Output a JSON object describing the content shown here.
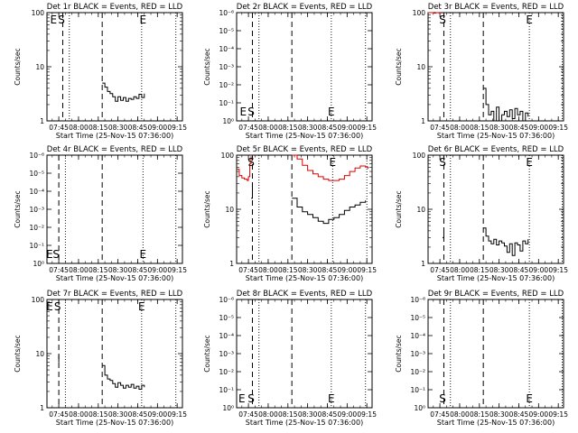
{
  "figure": {
    "x_tick_labels": [
      "07:45",
      "08:00",
      "08:15",
      "08:30",
      "08:45",
      "09:00",
      "09:15"
    ],
    "colors": {
      "events": "#000000",
      "lld": "#dd0000",
      "axes": "#000000",
      "background": "#ffffff"
    }
  },
  "chart_data": [
    {
      "type": "line",
      "title": "Det 1r BLACK = Events, RED = LLD",
      "xlabel": "Start Time (25-Nov-15 07:36:00)",
      "ylabel": "Counts/sec",
      "x_tick_labels": [
        "07:45",
        "08:00",
        "08:15",
        "08:30",
        "08:45",
        "09:00",
        "09:15"
      ],
      "xlim": [
        "07:36",
        "09:19"
      ],
      "y_scale": "log",
      "ylim": [
        1,
        100
      ],
      "y_tick_labels": [
        "1",
        "10",
        "100"
      ],
      "markers": [
        {
          "x": "07:41",
          "text": "E"
        },
        {
          "x": "07:47",
          "text": "S"
        },
        {
          "x": "08:49",
          "text": "E"
        }
      ],
      "dashed_lines_x": [
        "07:48",
        "08:18"
      ],
      "dotted_lines_x": [
        "07:53",
        "08:48",
        "09:14"
      ],
      "series": [
        {
          "color": "#000000",
          "x": [
            "08:18",
            "08:20",
            "08:22",
            "08:24",
            "08:26",
            "08:28",
            "08:30",
            "08:32",
            "08:34",
            "08:36",
            "08:38",
            "08:40",
            "08:42",
            "08:44",
            "08:46",
            "08:48",
            "08:50"
          ],
          "y": [
            5,
            4.2,
            3.5,
            3.2,
            2.8,
            2.3,
            2.8,
            2.4,
            2.7,
            2.3,
            2.6,
            2.5,
            2.8,
            2.6,
            3.1,
            2.7,
            3.2
          ]
        }
      ]
    },
    {
      "type": "line",
      "title": "Det 2r BLACK = Events, RED = LLD",
      "xlabel": "Start Time (25-Nov-15 07:36:00)",
      "ylabel": "Counts/sec",
      "x_tick_labels": [
        "07:45",
        "08:00",
        "08:15",
        "08:30",
        "08:45",
        "09:00",
        "09:15"
      ],
      "xlim": [
        "07:36",
        "09:19"
      ],
      "y_scale": "log",
      "ylim": [
        1,
        1e-06
      ],
      "y_tick_labels": [
        "10⁰",
        "10⁻¹",
        "10⁻²",
        "10⁻³",
        "10⁻⁴",
        "10⁻⁵",
        "10⁻⁶"
      ],
      "markers": [
        {
          "x": "07:41",
          "text": "E"
        },
        {
          "x": "07:47",
          "text": "S"
        },
        {
          "x": "08:48",
          "text": "E"
        }
      ],
      "dashed_lines_x": [
        "07:48",
        "08:18"
      ],
      "dotted_lines_x": [
        "07:53",
        "08:48",
        "09:14"
      ],
      "series": []
    },
    {
      "type": "line",
      "title": "Det 3r BLACK = Events, RED = LLD",
      "xlabel": "Start Time (25-Nov-15 07:36:00)",
      "ylabel": "Counts/sec",
      "x_tick_labels": [
        "07:45",
        "08:00",
        "08:15",
        "08:30",
        "08:45",
        "09:00",
        "09:15"
      ],
      "xlim": [
        "07:36",
        "09:19"
      ],
      "y_scale": "log",
      "ylim": [
        1,
        100
      ],
      "y_tick_labels": [
        "1",
        "10",
        "100"
      ],
      "markers": [
        {
          "x": "07:47",
          "text": "S"
        },
        {
          "x": "08:53",
          "text": "E"
        }
      ],
      "dashed_lines_x": [
        "07:48",
        "08:18"
      ],
      "dotted_lines_x": [
        "07:53",
        "08:53",
        "09:18"
      ],
      "series": [
        {
          "color": "#dd0000",
          "x": [
            "07:36",
            "07:38",
            "07:40",
            "07:42",
            "07:44",
            "07:46"
          ],
          "y": [
            100,
            100,
            98,
            100,
            99,
            100
          ]
        },
        {
          "color": "#000000",
          "x": [
            "08:18",
            "08:20",
            "08:22",
            "08:24",
            "08:26",
            "08:28",
            "08:30",
            "08:32",
            "08:34",
            "08:36",
            "08:38",
            "08:40",
            "08:42",
            "08:44",
            "08:46",
            "08:48",
            "08:50",
            "08:52"
          ],
          "y": [
            4,
            2,
            1.3,
            1.5,
            1,
            1.8,
            1,
            1.3,
            1.5,
            1.2,
            1.6,
            1.1,
            1.7,
            1.3,
            1.5,
            1,
            1.4,
            1.2
          ]
        }
      ]
    },
    {
      "type": "line",
      "title": "Det 4r BLACK = Events, RED = LLD",
      "xlabel": "Start Time (25-Nov-15 07:36:00)",
      "ylabel": "Counts/sec",
      "x_tick_labels": [
        "07:45",
        "08:00",
        "08:15",
        "08:30",
        "08:45",
        "09:00",
        "09:15"
      ],
      "xlim": [
        "07:36",
        "09:19"
      ],
      "y_scale": "log",
      "ylim": [
        1,
        1e-06
      ],
      "y_tick_labels": [
        "10⁰",
        "10⁻¹",
        "10⁻²",
        "10⁻³",
        "10⁻⁴",
        "10⁻⁵",
        "10⁻⁶"
      ],
      "markers": [
        {
          "x": "07:38",
          "text": "E"
        },
        {
          "x": "07:43",
          "text": "S"
        },
        {
          "x": "08:49",
          "text": "E"
        }
      ],
      "dashed_lines_x": [
        "07:45",
        "08:18"
      ],
      "dotted_lines_x": [
        "07:50",
        "08:49",
        "09:14"
      ],
      "series": []
    },
    {
      "type": "line",
      "title": "Det 5r BLACK = Events, RED = LLD",
      "xlabel": "Start Time (25-Nov-15 07:36:00)",
      "ylabel": "Counts/sec",
      "x_tick_labels": [
        "07:45",
        "08:00",
        "08:15",
        "08:30",
        "08:45",
        "09:00",
        "09:15"
      ],
      "xlim": [
        "07:36",
        "09:19"
      ],
      "y_scale": "log",
      "ylim": [
        1,
        100
      ],
      "y_tick_labels": [
        "1",
        "10",
        "100"
      ],
      "markers": [
        {
          "x": "07:47",
          "text": "S"
        },
        {
          "x": "08:49",
          "text": "E"
        }
      ],
      "dashed_lines_x": [
        "07:48",
        "08:18"
      ],
      "dotted_lines_x": [
        "07:53",
        "08:49",
        "09:15"
      ],
      "series": [
        {
          "color": "#dd0000",
          "x": [
            "07:36",
            "07:38",
            "07:40",
            "07:42",
            "07:44",
            "07:45",
            "07:46",
            "07:47"
          ],
          "y": [
            55,
            42,
            38,
            36,
            34,
            40,
            70,
            95
          ]
        },
        {
          "color": "#dd0000",
          "x": [
            "08:18",
            "08:22",
            "08:26",
            "08:30",
            "08:34",
            "08:38",
            "08:42",
            "08:46",
            "08:50",
            "08:54",
            "08:58",
            "09:02",
            "09:06",
            "09:10",
            "09:14",
            "09:16"
          ],
          "y": [
            100,
            85,
            65,
            52,
            45,
            40,
            36,
            34,
            34,
            36,
            42,
            50,
            58,
            63,
            60,
            56
          ]
        },
        {
          "color": "#000000",
          "x": [
            "07:47",
            "07:48"
          ],
          "y": [
            16,
            30
          ]
        },
        {
          "color": "#000000",
          "x": [
            "08:18",
            "08:22",
            "08:26",
            "08:30",
            "08:34",
            "08:38",
            "08:42",
            "08:46",
            "08:50",
            "08:54",
            "08:58",
            "09:02",
            "09:06",
            "09:10",
            "09:14"
          ],
          "y": [
            16,
            11,
            9,
            8,
            7,
            6,
            5.5,
            6.5,
            7,
            8,
            9.5,
            11,
            12,
            13.5,
            14.5
          ]
        }
      ]
    },
    {
      "type": "line",
      "title": "Det 6r BLACK = Events, RED = LLD",
      "xlabel": "Start Time (25-Nov-15 07:36:00)",
      "ylabel": "Counts/sec",
      "x_tick_labels": [
        "07:45",
        "08:00",
        "08:15",
        "08:30",
        "08:45",
        "09:00",
        "09:15"
      ],
      "xlim": [
        "07:36",
        "09:19"
      ],
      "y_scale": "log",
      "ylim": [
        1,
        100
      ],
      "y_tick_labels": [
        "1",
        "10",
        "100"
      ],
      "markers": [
        {
          "x": "07:47",
          "text": "S"
        },
        {
          "x": "08:53",
          "text": "E"
        }
      ],
      "dashed_lines_x": [
        "07:48",
        "08:18"
      ],
      "dotted_lines_x": [
        "07:53",
        "08:53",
        "09:18"
      ],
      "series": [
        {
          "color": "#000000",
          "x": [
            "07:47",
            "07:48"
          ],
          "y": [
            3,
            4.5
          ]
        },
        {
          "color": "#000000",
          "x": [
            "08:18",
            "08:20",
            "08:22",
            "08:24",
            "08:26",
            "08:28",
            "08:30",
            "08:32",
            "08:34",
            "08:36",
            "08:38",
            "08:40",
            "08:42",
            "08:44",
            "08:46",
            "08:48",
            "08:50",
            "08:52"
          ],
          "y": [
            4.5,
            3.2,
            2.6,
            2.3,
            2.8,
            2.2,
            2.6,
            2.4,
            2.1,
            1.6,
            2.3,
            1.4,
            2.4,
            2.2,
            1.7,
            2.6,
            2.3,
            2.8
          ]
        }
      ]
    },
    {
      "type": "line",
      "title": "Det 7r BLACK = Events, RED = LLD",
      "xlabel": "Start Time (25-Nov-15 07:36:00)",
      "ylabel": "Counts/sec",
      "x_tick_labels": [
        "07:45",
        "08:00",
        "08:15",
        "08:30",
        "08:45",
        "09:00",
        "09:15"
      ],
      "xlim": [
        "07:36",
        "09:19"
      ],
      "y_scale": "log",
      "ylim": [
        1,
        100
      ],
      "y_tick_labels": [
        "1",
        "10",
        "100"
      ],
      "markers": [
        {
          "x": "07:38",
          "text": "E"
        },
        {
          "x": "07:44",
          "text": "S"
        },
        {
          "x": "08:48",
          "text": "E"
        }
      ],
      "dashed_lines_x": [
        "07:45",
        "08:18"
      ],
      "dotted_lines_x": [
        "07:50",
        "08:48",
        "09:14"
      ],
      "series": [
        {
          "color": "#000000",
          "x": [
            "07:45"
          ],
          "y": [
            8
          ]
        },
        {
          "color": "#000000",
          "x": [
            "08:18",
            "08:20",
            "08:22",
            "08:24",
            "08:26",
            "08:28",
            "08:30",
            "08:32",
            "08:34",
            "08:36",
            "08:38",
            "08:40",
            "08:42",
            "08:44",
            "08:46",
            "08:48",
            "08:50"
          ],
          "y": [
            6,
            4,
            3.4,
            3.2,
            2.8,
            2.4,
            2.9,
            2.6,
            2.3,
            2.6,
            2.4,
            2.7,
            2.3,
            2.5,
            2.2,
            2.6,
            2.4
          ]
        }
      ]
    },
    {
      "type": "line",
      "title": "Det 8r BLACK = Events, RED = LLD",
      "xlabel": "Start Time (25-Nov-15 07:36:00)",
      "ylabel": "Counts/sec",
      "x_tick_labels": [
        "07:45",
        "08:00",
        "08:15",
        "08:30",
        "08:45",
        "09:00",
        "09:15"
      ],
      "xlim": [
        "07:36",
        "09:19"
      ],
      "y_scale": "log",
      "ylim": [
        1,
        1e-06
      ],
      "y_tick_labels": [
        "10⁰",
        "10⁻¹",
        "10⁻²",
        "10⁻³",
        "10⁻⁴",
        "10⁻⁵",
        "10⁻⁶"
      ],
      "markers": [
        {
          "x": "07:40",
          "text": "E"
        },
        {
          "x": "07:47",
          "text": "S"
        },
        {
          "x": "08:48",
          "text": "E"
        }
      ],
      "dashed_lines_x": [
        "07:48",
        "08:18"
      ],
      "dotted_lines_x": [
        "07:53",
        "08:48",
        "09:14"
      ],
      "series": []
    },
    {
      "type": "line",
      "title": "Det 9r BLACK = Events, RED = LLD",
      "xlabel": "Start Time (25-Nov-15 07:36:00)",
      "ylabel": "Counts/sec",
      "x_tick_labels": [
        "07:45",
        "08:00",
        "08:15",
        "08:30",
        "08:45",
        "09:00",
        "09:15"
      ],
      "xlim": [
        "07:36",
        "09:19"
      ],
      "y_scale": "log",
      "ylim": [
        1,
        1e-06
      ],
      "y_tick_labels": [
        "10⁰",
        "10⁻¹",
        "10⁻²",
        "10⁻³",
        "10⁻⁴",
        "10⁻⁵",
        "10⁻⁶"
      ],
      "markers": [
        {
          "x": "07:47",
          "text": "S"
        },
        {
          "x": "08:53",
          "text": "E"
        }
      ],
      "dashed_lines_x": [
        "07:48",
        "08:18"
      ],
      "dotted_lines_x": [
        "07:53",
        "08:53",
        "09:18"
      ],
      "series": []
    }
  ]
}
